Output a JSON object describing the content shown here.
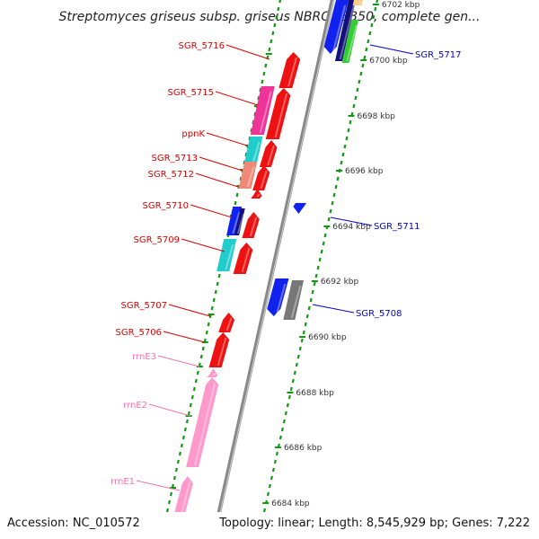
{
  "title": "Streptomyces griseus subsp. griseus NBRC 13350, complete gen...",
  "accession_text": "Accession: NC_010572",
  "topology_text": "Topology: linear; Length: 8,545,929 bp; Genes: 7,222",
  "ruler_labels": [
    "6702 kbp",
    "6700 kbp",
    "6698 kbp",
    "6696 kbp",
    "6694 kbp",
    "6692 kbp",
    "6690 kbp",
    "6688 kbp",
    "6686 kbp",
    "6684 kbp"
  ],
  "colors": {
    "red": "#ee1111",
    "magenta": "#ee3399",
    "cyan": "#22cccc",
    "salmon": "#ee8877",
    "blue": "#1122ee",
    "navy": "#111177",
    "green": "#33cc33",
    "gray": "#777777",
    "pink": "#ff99cc",
    "orange": "#ffcc88",
    "axis": "#888888",
    "tick": "#119911",
    "label_red": "#dd0000",
    "label_blue": "#0000cc",
    "label_pink": "#ee77aa"
  },
  "genes_left": [
    {
      "label": "SGR_5716",
      "label_color": "red",
      "fill": "red"
    },
    {
      "label": "SGR_5715",
      "label_color": "red",
      "fill": "red"
    },
    {
      "label": "ppnK",
      "label_color": "red",
      "fill": "red"
    },
    {
      "label": "SGR_5713",
      "label_color": "red",
      "fill": "red"
    },
    {
      "label": "SGR_5712",
      "label_color": "red",
      "fill": "red"
    },
    {
      "label": "SGR_5710",
      "label_color": "red",
      "fill": "red"
    },
    {
      "label": "SGR_5709",
      "label_color": "red",
      "fill": "red"
    },
    {
      "label": "SGR_5707",
      "label_color": "red",
      "fill": "red"
    },
    {
      "label": "SGR_5706",
      "label_color": "red",
      "fill": "red"
    },
    {
      "label": "rrnE3",
      "label_color": "pink",
      "fill": "pink"
    },
    {
      "label": "rrnE2",
      "label_color": "pink",
      "fill": "pink"
    },
    {
      "label": "rrnE1",
      "label_color": "pink",
      "fill": "pink"
    }
  ],
  "genes_right": [
    {
      "label": "SGR_5717",
      "label_color": "blue",
      "fill": "blue"
    },
    {
      "label": "SGR_5711",
      "label_color": "blue",
      "fill": "blue"
    },
    {
      "label": "SGR_5708",
      "label_color": "blue",
      "fill": "blue"
    }
  ]
}
